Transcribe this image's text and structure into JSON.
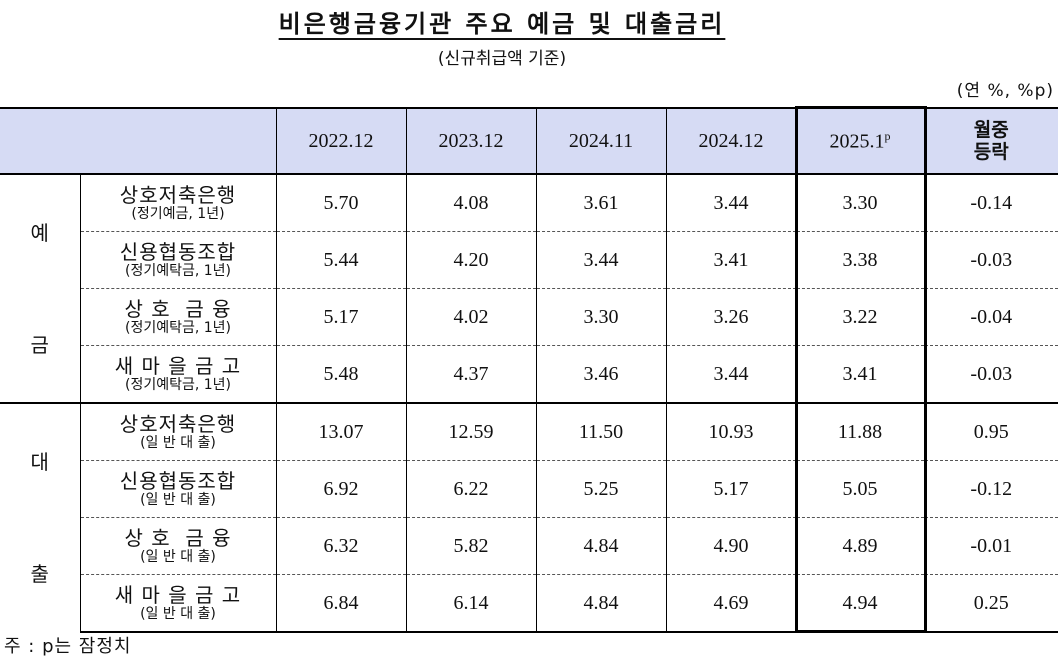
{
  "title": "비은행금융기관 주요 예금 및 대출금리",
  "subtitle": "(신규취급액 기준)",
  "unit": "(연 %, %p)",
  "headers": {
    "periods": [
      "2022.12",
      "2023.12",
      "2024.11",
      "2024.12",
      "2025.1"
    ],
    "last_period_sup": "p",
    "change_line1": "월중",
    "change_line2": "등락"
  },
  "deposit": {
    "group_line1": "예",
    "group_line2": "금",
    "rows": [
      {
        "name": "상호저축은행",
        "sub": "(정기예금, 1년)",
        "values": [
          "5.70",
          "4.08",
          "3.61",
          "3.44",
          "3.30",
          "-0.14"
        ]
      },
      {
        "name": "신용협동조합",
        "sub": "(정기예탁금, 1년)",
        "values": [
          "5.44",
          "4.20",
          "3.44",
          "3.41",
          "3.38",
          "-0.03"
        ]
      },
      {
        "name": "상 호  금 융",
        "sub": "(정기예탁금, 1년)",
        "values": [
          "5.17",
          "4.02",
          "3.30",
          "3.26",
          "3.22",
          "-0.04"
        ]
      },
      {
        "name": "새 마 을 금 고",
        "sub": "(정기예탁금, 1년)",
        "values": [
          "5.48",
          "4.37",
          "3.46",
          "3.44",
          "3.41",
          "-0.03"
        ]
      }
    ]
  },
  "loan": {
    "group_line1": "대",
    "group_line2": "출",
    "rows": [
      {
        "name": "상호저축은행",
        "sub": "(일 반 대 출)",
        "values": [
          "13.07",
          "12.59",
          "11.50",
          "10.93",
          "11.88",
          "0.95"
        ]
      },
      {
        "name": "신용협동조합",
        "sub": "(일 반 대 출)",
        "values": [
          "6.92",
          "6.22",
          "5.25",
          "5.17",
          "5.05",
          "-0.12"
        ]
      },
      {
        "name": "상 호  금 융",
        "sub": "(일 반 대 출)",
        "values": [
          "6.32",
          "5.82",
          "4.84",
          "4.90",
          "4.89",
          "-0.01"
        ]
      },
      {
        "name": "새 마 을 금 고",
        "sub": "(일 반 대 출)",
        "values": [
          "6.84",
          "6.14",
          "4.84",
          "4.69",
          "4.94",
          "0.25"
        ]
      }
    ]
  },
  "footnote": "주 : p는 잠정치",
  "colors": {
    "header_bg": "#d6dbf4",
    "border": "#000000"
  }
}
